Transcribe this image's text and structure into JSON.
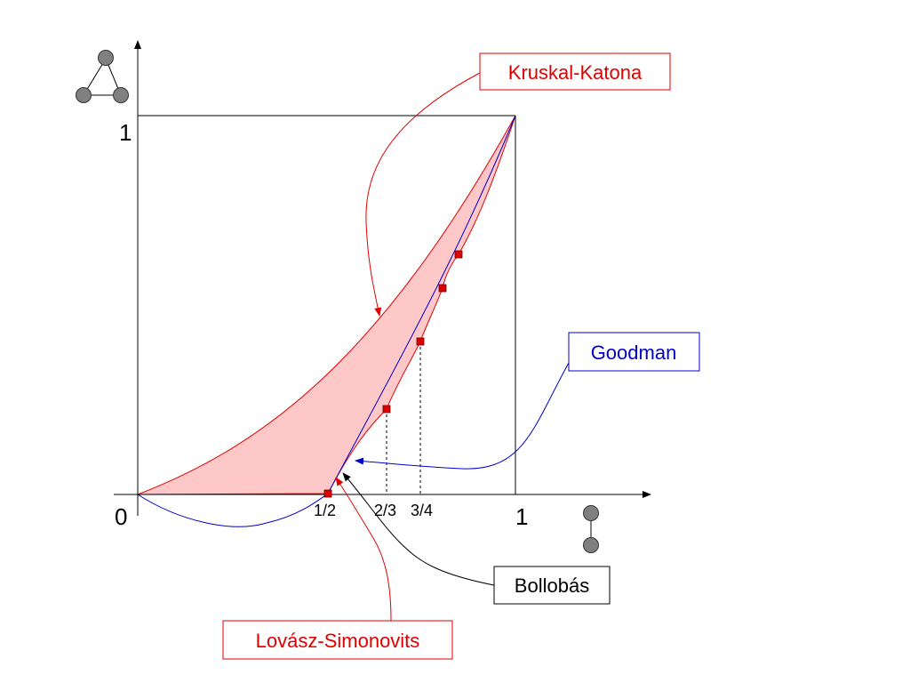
{
  "axes": {
    "origin_label": "0",
    "x_one_label": "1",
    "y_one_label": "1",
    "x_ticks": [
      "1/2",
      "2/3",
      "3/4"
    ]
  },
  "labels": {
    "kruskal_katona": "Kruskal-Katona",
    "goodman": "Goodman",
    "bollobas": "Bollobás",
    "lovasz_simonovits": "Lovász-Simonovits"
  },
  "colors": {
    "region_fill": "#ffc8c8",
    "kruskal_red": "#e00000",
    "goodman_blue": "#0000cc",
    "axis": "#000000",
    "node_gray": "#808080",
    "marker_red": "#dd0000"
  },
  "icons": {
    "y_axis": "triangle-graph-icon",
    "x_axis": "edge-graph-icon"
  }
}
